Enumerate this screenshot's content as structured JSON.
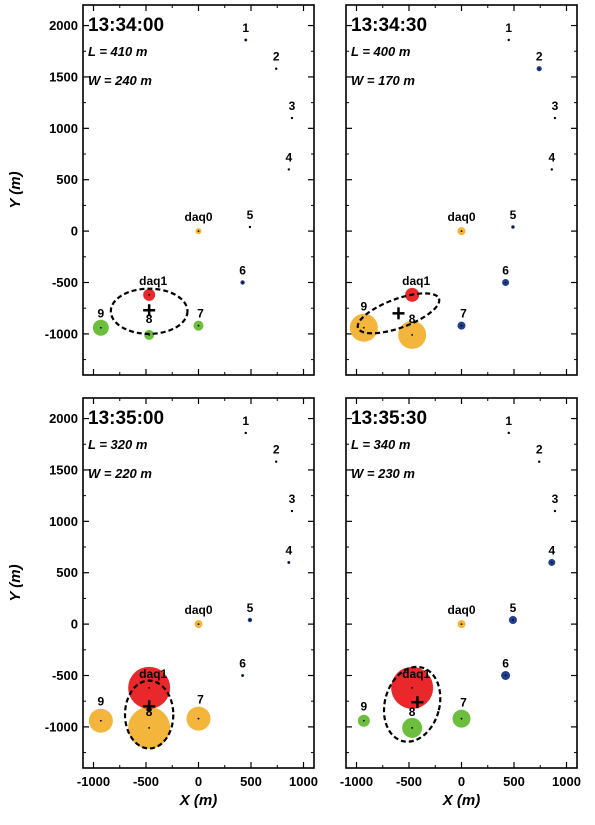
{
  "chart_data": {
    "type": "scatter",
    "xlabel": "X (m)",
    "ylabel": "Y (m)",
    "xlim": [
      -1100,
      1100
    ],
    "ylim": [
      -1400,
      2200
    ],
    "x_ticks": [
      -1000,
      -500,
      0,
      500,
      1000
    ],
    "y_ticks": [
      -1000,
      -500,
      0,
      500,
      1000,
      1500,
      2000
    ],
    "stations": [
      {
        "label": "1",
        "x": 450,
        "y": 1860
      },
      {
        "label": "2",
        "x": 740,
        "y": 1580
      },
      {
        "label": "3",
        "x": 890,
        "y": 1100
      },
      {
        "label": "4",
        "x": 860,
        "y": 600
      },
      {
        "label": "5",
        "x": 490,
        "y": 40
      },
      {
        "label": "6",
        "x": 420,
        "y": -500
      },
      {
        "label": "7",
        "x": 0,
        "y": -920
      },
      {
        "label": "8",
        "x": -470,
        "y": -1010
      },
      {
        "label": "9",
        "x": -930,
        "y": -940
      },
      {
        "label": "daq0",
        "x": 0,
        "y": 0
      },
      {
        "label": "daq1",
        "x": -470,
        "y": -620
      }
    ],
    "panels": [
      {
        "time": "13:34:00",
        "L": "L = 410 m",
        "W": "W = 240 m",
        "center": {
          "x": -470,
          "y": -770
        },
        "ellipse": {
          "cx": -470,
          "cy": -780,
          "rx": 365,
          "ry": 220
        },
        "hits": [
          {
            "station": "1",
            "r": 1.5,
            "color": "#1f3f8a"
          },
          {
            "station": "2",
            "r": 1.2,
            "color": "#000000"
          },
          {
            "station": "3",
            "r": 1.2,
            "color": "#000000"
          },
          {
            "station": "4",
            "r": 1.2,
            "color": "#000000"
          },
          {
            "station": "5",
            "r": 1.2,
            "color": "#000000"
          },
          {
            "station": "6",
            "r": 2.2,
            "color": "#1f3f8a"
          },
          {
            "station": "7",
            "r": 5,
            "color": "#6cbf3e"
          },
          {
            "station": "8",
            "r": 5,
            "color": "#6cbf3e"
          },
          {
            "station": "9",
            "r": 8,
            "color": "#6cbf3e"
          },
          {
            "station": "daq0",
            "r": 3,
            "color": "#f3b53b"
          },
          {
            "station": "daq1",
            "r": 6,
            "color": "#e8282b"
          }
        ]
      },
      {
        "time": "13:34:30",
        "L": "L = 400 m",
        "W": "W = 170 m",
        "center": {
          "x": -600,
          "y": -800
        },
        "ellipse": {
          "cx": -600,
          "cy": -800,
          "rx": 410,
          "ry": 140,
          "rotate": -20
        },
        "hits": [
          {
            "station": "1",
            "r": 1.2,
            "color": "#000000"
          },
          {
            "station": "2",
            "r": 2.6,
            "color": "#1f3f8a"
          },
          {
            "station": "3",
            "r": 1.2,
            "color": "#000000"
          },
          {
            "station": "4",
            "r": 1.2,
            "color": "#000000"
          },
          {
            "station": "5",
            "r": 1.8,
            "color": "#1f3f8a"
          },
          {
            "station": "6",
            "r": 3.5,
            "color": "#1f3f8a"
          },
          {
            "station": "7",
            "r": 4,
            "color": "#1f3f8a"
          },
          {
            "station": "8",
            "r": 14,
            "color": "#f3b53b"
          },
          {
            "station": "9",
            "r": 14,
            "color": "#f3b53b"
          },
          {
            "station": "daq0",
            "r": 4,
            "color": "#f3b53b"
          },
          {
            "station": "daq1",
            "r": 7,
            "color": "#e8282b"
          }
        ]
      },
      {
        "time": "13:35:00",
        "L": "L = 320 m",
        "W": "W = 220 m",
        "center": {
          "x": -470,
          "y": -800
        },
        "ellipse": {
          "cx": -470,
          "cy": -880,
          "rx": 230,
          "ry": 330
        },
        "hits": [
          {
            "station": "1",
            "r": 1.2,
            "color": "#000000"
          },
          {
            "station": "2",
            "r": 1.2,
            "color": "#000000"
          },
          {
            "station": "3",
            "r": 1.2,
            "color": "#000000"
          },
          {
            "station": "4",
            "r": 1.5,
            "color": "#1f3f8a"
          },
          {
            "station": "5",
            "r": 2.2,
            "color": "#1f3f8a"
          },
          {
            "station": "6",
            "r": 1.5,
            "color": "#1f3f8a"
          },
          {
            "station": "7",
            "r": 12,
            "color": "#f3b53b"
          },
          {
            "station": "8",
            "r": 21,
            "color": "#f3b53b"
          },
          {
            "station": "9",
            "r": 12,
            "color": "#f3b53b"
          },
          {
            "station": "daq0",
            "r": 4,
            "color": "#f3b53b"
          },
          {
            "station": "daq1",
            "r": 21,
            "color": "#e8282b"
          }
        ]
      },
      {
        "time": "13:35:30",
        "L": "L = 340 m",
        "W": "W = 230 m",
        "center": {
          "x": -420,
          "y": -760
        },
        "ellipse": {
          "cx": -470,
          "cy": -780,
          "rx": 260,
          "ry": 370,
          "rotate": 15
        },
        "hits": [
          {
            "station": "1",
            "r": 1.2,
            "color": "#000000"
          },
          {
            "station": "2",
            "r": 1.2,
            "color": "#000000"
          },
          {
            "station": "3",
            "r": 1.2,
            "color": "#000000"
          },
          {
            "station": "4",
            "r": 3.5,
            "color": "#1f3f8a"
          },
          {
            "station": "5",
            "r": 4,
            "color": "#1f3f8a"
          },
          {
            "station": "6",
            "r": 4.5,
            "color": "#1f3f8a"
          },
          {
            "station": "7",
            "r": 9,
            "color": "#6cbf3e"
          },
          {
            "station": "8",
            "r": 10,
            "color": "#6cbf3e"
          },
          {
            "station": "9",
            "r": 6,
            "color": "#6cbf3e"
          },
          {
            "station": "daq0",
            "r": 4,
            "color": "#f3b53b"
          },
          {
            "station": "daq1",
            "r": 21,
            "color": "#e8282b"
          }
        ]
      }
    ]
  }
}
